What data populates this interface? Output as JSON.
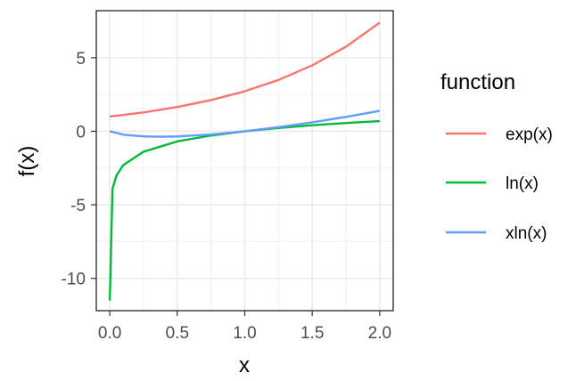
{
  "chart_data": {
    "type": "line",
    "xlabel": "x",
    "ylabel": "f(x)",
    "xlim": [
      -0.1,
      2.1
    ],
    "ylim": [
      -12.2,
      8.2
    ],
    "x_ticks": [
      0.0,
      0.5,
      1.0,
      1.5,
      2.0
    ],
    "x_tick_labels": [
      "0.0",
      "0.5",
      "1.0",
      "1.5",
      "2.0"
    ],
    "y_ticks": [
      5,
      0,
      -5,
      -10
    ],
    "y_tick_labels": [
      "5",
      "0",
      "-5",
      "-10"
    ],
    "grid": true,
    "legend": {
      "title": "function",
      "position": "right"
    },
    "series": [
      {
        "name": "exp(x)",
        "color": "#F8766D",
        "x": [
          0.0,
          0.25,
          0.5,
          0.75,
          1.0,
          1.25,
          1.5,
          1.75,
          2.0
        ],
        "y": [
          1.0,
          1.28,
          1.65,
          2.12,
          2.72,
          3.49,
          4.48,
          5.75,
          7.39
        ]
      },
      {
        "name": "ln(x)",
        "color": "#00BA38",
        "x": [
          1e-05,
          0.02,
          0.05,
          0.1,
          0.25,
          0.5,
          0.75,
          1.0,
          1.25,
          1.5,
          1.75,
          2.0
        ],
        "y": [
          -11.51,
          -3.91,
          -3.0,
          -2.3,
          -1.39,
          -0.69,
          -0.29,
          0.0,
          0.22,
          0.41,
          0.56,
          0.69
        ]
      },
      {
        "name": "xln(x)",
        "color": "#619CFF",
        "x": [
          0.0,
          0.1,
          0.25,
          0.37,
          0.5,
          0.75,
          1.0,
          1.25,
          1.5,
          1.75,
          2.0
        ],
        "y": [
          0.0,
          -0.23,
          -0.35,
          -0.37,
          -0.35,
          -0.22,
          0.0,
          0.28,
          0.61,
          0.98,
          1.39
        ]
      }
    ]
  }
}
